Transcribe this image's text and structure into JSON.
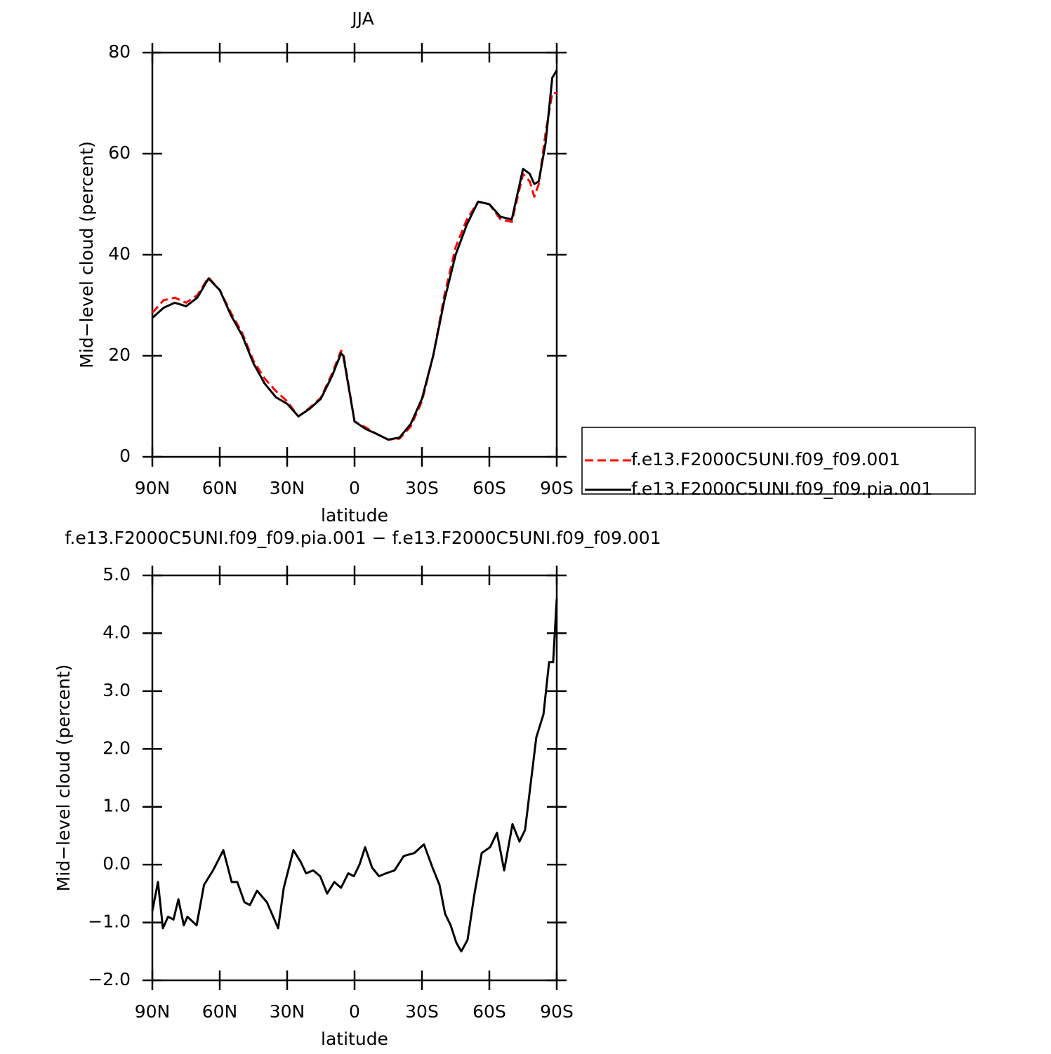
{
  "chart_data": [
    {
      "type": "line",
      "title": "JJA",
      "xlabel": "latitude",
      "ylabel": "Mid−level cloud (percent)",
      "x": [
        90,
        85,
        80,
        75,
        70,
        65,
        60,
        55,
        50,
        45,
        40,
        35,
        30,
        25,
        20,
        15,
        10,
        6,
        5,
        0,
        -5,
        -10,
        -15,
        -20,
        -25,
        -30,
        -35,
        -40,
        -45,
        -50,
        -55,
        -60,
        -65,
        -70,
        -75,
        -78,
        -80,
        -82,
        -85,
        -88,
        -90
      ],
      "series": [
        {
          "name": "f.e13.F2000C5UNI.f09_f09.001",
          "color": "#ff0000",
          "dash": true,
          "values": [
            28.5,
            31,
            31.5,
            30.5,
            32,
            35.5,
            33,
            28.5,
            24.5,
            19,
            15.5,
            13,
            11,
            8,
            9.7,
            11.7,
            16.5,
            21,
            20.5,
            7,
            5.8,
            4.5,
            3.4,
            3.6,
            6,
            11,
            20,
            32,
            41.5,
            47,
            50.5,
            50,
            47,
            46.5,
            56,
            54.5,
            51.5,
            54,
            64,
            72,
            72
          ]
        },
        {
          "name": "f.e13.F2000C5UNI.f09_f09.pia.001",
          "color": "#000000",
          "dash": false,
          "values": [
            27.5,
            29.5,
            30.5,
            29.8,
            31.5,
            35.3,
            33,
            28,
            24,
            18.5,
            14.5,
            11.8,
            10.5,
            8,
            9.5,
            11.5,
            16,
            20.5,
            20,
            7,
            5.5,
            4.5,
            3.4,
            3.8,
            6.5,
            11.5,
            20,
            31,
            40,
            46,
            50.5,
            50,
            47.5,
            47,
            57,
            56,
            54,
            54.5,
            62,
            75,
            76.5
          ]
        }
      ],
      "xlim": [
        90,
        -90
      ],
      "xticks": [
        {
          "value": 90,
          "label": "90N"
        },
        {
          "value": 60,
          "label": "60N"
        },
        {
          "value": 30,
          "label": "30N"
        },
        0,
        {
          "value": -30,
          "label": "30S"
        },
        {
          "value": -60,
          "label": "60S"
        },
        {
          "value": -90,
          "label": "90S"
        }
      ],
      "ylim": [
        0,
        80
      ],
      "yticks": [
        0,
        20,
        40,
        60,
        80
      ],
      "legend": "right"
    },
    {
      "type": "line",
      "title": "f.e13.F2000C5UNI.f09_f09.pia.001 − f.e13.F2000C5UNI.f09_f09.001",
      "xlabel": "latitude",
      "ylabel": "Mid−level cloud (percent)",
      "x": [
        90,
        87.5,
        85.3,
        83,
        80.6,
        78.4,
        76,
        74.4,
        70.3,
        67,
        63,
        58.4,
        54.7,
        52.2,
        49,
        46.6,
        43.4,
        39,
        34,
        31.5,
        27.2,
        24,
        21.6,
        18.4,
        15.3,
        12.2,
        9,
        6,
        2.8,
        0.3,
        -2.2,
        -4.7,
        -7.8,
        -10.9,
        -14,
        -17.8,
        -21.9,
        -26.6,
        -30.9,
        -34.7,
        -37.8,
        -40.3,
        -42.8,
        -45.3,
        -47.5,
        -50.3,
        -53.4,
        -56.6,
        -60.3,
        -63.4,
        -66.6,
        -70.3,
        -73.4,
        -75.9,
        -78.4,
        -80.9,
        -84.1,
        -86.6,
        -88.4,
        -90
      ],
      "color": "#000000",
      "values": [
        -0.8,
        -0.3,
        -1.1,
        -0.9,
        -0.95,
        -0.6,
        -1.05,
        -0.9,
        -1.05,
        -0.35,
        -0.1,
        0.25,
        -0.3,
        -0.3,
        -0.65,
        -0.7,
        -0.45,
        -0.65,
        -1.1,
        -0.4,
        0.25,
        0.05,
        -0.15,
        -0.1,
        -0.2,
        -0.5,
        -0.3,
        -0.4,
        -0.15,
        -0.2,
        0,
        0.3,
        -0.05,
        -0.2,
        -0.15,
        -0.1,
        0.15,
        0.2,
        0.35,
        -0.05,
        -0.35,
        -0.85,
        -1.05,
        -1.35,
        -1.5,
        -1.3,
        -0.5,
        0.2,
        0.3,
        0.55,
        -0.1,
        0.7,
        0.4,
        0.6,
        1.4,
        2.2,
        2.6,
        3.5,
        3.5,
        4.6
      ],
      "xlim": [
        90,
        -90
      ],
      "xticks": [
        {
          "value": 90,
          "label": "90N"
        },
        {
          "value": 60,
          "label": "60N"
        },
        {
          "value": 30,
          "label": "30N"
        },
        0,
        {
          "value": -30,
          "label": "30S"
        },
        {
          "value": -60,
          "label": "60S"
        },
        {
          "value": -90,
          "label": "90S"
        }
      ],
      "ylim": [
        -2,
        5
      ],
      "yticks": [
        {
          "value": -2,
          "label": "−2.0"
        },
        {
          "value": -1,
          "label": "−1.0"
        },
        {
          "value": 0,
          "label": "0.0"
        },
        {
          "value": 1,
          "label": "1.0"
        },
        {
          "value": 2,
          "label": "2.0"
        },
        {
          "value": 3,
          "label": "3.0"
        },
        {
          "value": 4,
          "label": "4.0"
        },
        {
          "value": 5,
          "label": "5.0"
        }
      ]
    }
  ]
}
